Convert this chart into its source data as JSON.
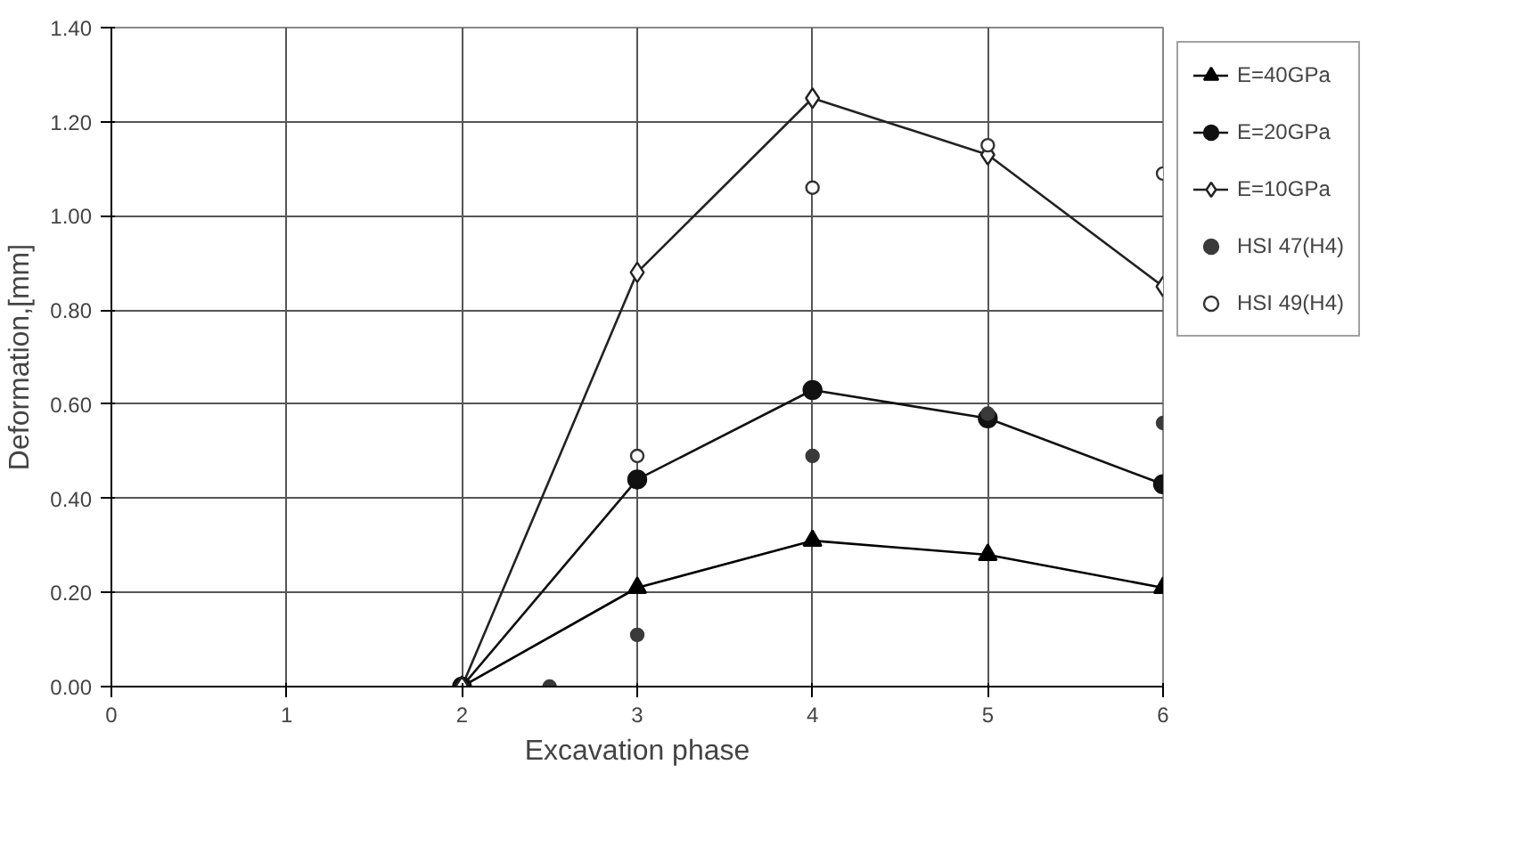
{
  "chart_data": {
    "type": "line",
    "xlabel": "Excavation phase",
    "ylabel": "Deformation,[mm]",
    "xlim": [
      0,
      6
    ],
    "ylim": [
      0,
      1.4
    ],
    "xticks": [
      0,
      1,
      2,
      3,
      4,
      5,
      6
    ],
    "yticks": [
      {
        "value": 0,
        "label": "0.00"
      },
      {
        "value": 0.2,
        "label": "0.20"
      },
      {
        "value": 0.4,
        "label": "0.40"
      },
      {
        "value": 0.6,
        "label": "0.60"
      },
      {
        "value": 0.8,
        "label": "0.80"
      },
      {
        "value": 1.0,
        "label": "1.00"
      },
      {
        "value": 1.2,
        "label": "1.20"
      },
      {
        "value": 1.4,
        "label": "1.40"
      }
    ],
    "grid": true,
    "legend": "right",
    "series": [
      {
        "name": "E=40GPa",
        "marker": "triangle",
        "color": "#000000",
        "x": [
          2,
          3,
          4,
          5,
          6
        ],
        "values": [
          0,
          0.21,
          0.31,
          0.28,
          0.21
        ]
      },
      {
        "name": "E=20GPa",
        "marker": "circle",
        "color": "#111111",
        "x": [
          2,
          3,
          4,
          5,
          6
        ],
        "values": [
          0,
          0.44,
          0.63,
          0.57,
          0.43
        ]
      },
      {
        "name": "E=10GPa",
        "marker": "diamond",
        "color": "#222222",
        "x": [
          2,
          3,
          4,
          5,
          6
        ],
        "values": [
          0,
          0.88,
          1.25,
          1.13,
          0.85
        ]
      },
      {
        "name": "HSI 47(H4)",
        "type": "scatter",
        "marker": "circle",
        "color": "#3a3a3a",
        "x": [
          2.5,
          3,
          4,
          5,
          6
        ],
        "values": [
          0,
          0.11,
          0.49,
          0.58,
          0.56
        ]
      },
      {
        "name": "HSI 49(H4)",
        "type": "scatter",
        "marker": "circle_open",
        "color": "#333333",
        "x": [
          3,
          4,
          5,
          6
        ],
        "values": [
          0.49,
          1.06,
          1.15,
          1.09
        ]
      }
    ]
  }
}
